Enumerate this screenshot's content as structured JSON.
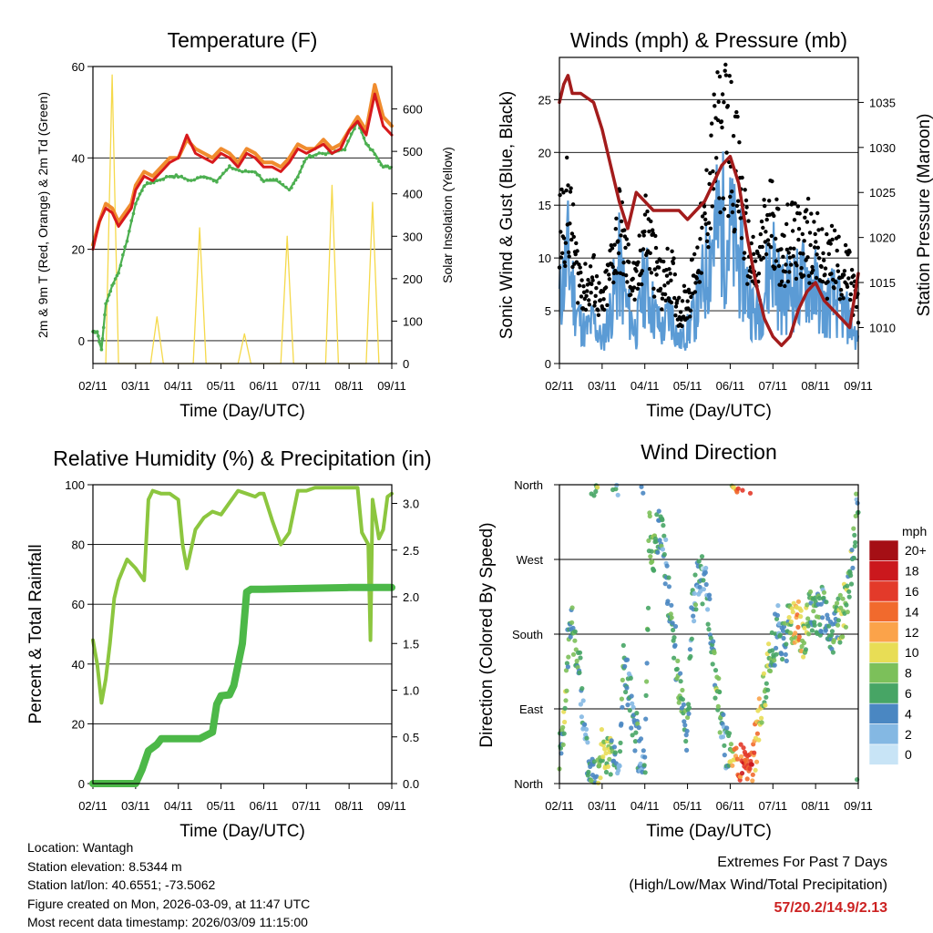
{
  "colors": {
    "red": "#d7191c",
    "orange": "#f08c2e",
    "green": "#4caf50",
    "yellow": "#f5d94a",
    "black": "#000000",
    "blue": "#5b9bd5",
    "maroon": "#a31c1c",
    "rh": "#8cc63f",
    "precip": "#4cb848"
  },
  "time_ticks": [
    "02/11",
    "03/11",
    "04/11",
    "05/11",
    "06/11",
    "07/11",
    "08/11",
    "09/11"
  ],
  "charts": {
    "temperature": {
      "title": "Temperature (F)",
      "ylabel": "2m & 9m T (Red, Orange) & 2m Td (Green)",
      "ylabel_right": "Solar Insolation (Yellow)",
      "xlabel": "Time (Day/UTC)",
      "left_ticks": [
        "0",
        "20",
        "40",
        "60"
      ],
      "right_ticks": [
        "0",
        "100",
        "200",
        "300",
        "400",
        "500",
        "600"
      ]
    },
    "winds": {
      "title": "Winds (mph) & Pressure (mb)",
      "ylabel": "Sonic Wind & Gust (Blue, Black)",
      "ylabel_right": "Station Pressure (Maroon)",
      "xlabel": "Time (Day/UTC)",
      "left_ticks": [
        "0",
        "5",
        "10",
        "15",
        "20",
        "25"
      ],
      "right_ticks": [
        "1010",
        "1015",
        "1020",
        "1025",
        "1030",
        "1035"
      ]
    },
    "humidity": {
      "title": "Relative Humidity (%) & Precipitation (in)",
      "ylabel": "Percent & Total Rainfall",
      "xlabel": "Time (Day/UTC)",
      "left_ticks": [
        "0",
        "20",
        "40",
        "60",
        "80",
        "100"
      ],
      "right_ticks": [
        "0.0",
        "0.5",
        "1.0",
        "1.5",
        "2.0",
        "2.5",
        "3.0"
      ]
    },
    "direction": {
      "title": "Wind Direction",
      "ylabel": "Direction (Colored By Speed)",
      "xlabel": "Time (Day/UTC)",
      "dir_ticks": [
        "North",
        "East",
        "South",
        "West",
        "North"
      ],
      "legend_title": "mph",
      "legend_labels": [
        "20+",
        "18",
        "16",
        "14",
        "12",
        "10",
        "8",
        "6",
        "4",
        "2",
        "0"
      ],
      "legend_colors": [
        "#a50f15",
        "#cb181d",
        "#e33a2a",
        "#f16a2d",
        "#fba34a",
        "#e8dd55",
        "#7cc05a",
        "#47a565",
        "#4a87c2",
        "#84b8e3",
        "#c8e4f6"
      ]
    }
  },
  "chart_data": [
    {
      "type": "line",
      "title": "Temperature (F)",
      "xlabel": "Time (Day/UTC)",
      "ylabel": "2m & 9m T (Red, Orange) & 2m Td (Green)",
      "ylim": [
        -5,
        60
      ],
      "y2lim": [
        0,
        700
      ],
      "x_unit": "days since 02/11",
      "series": [
        {
          "name": "2m T",
          "axis": "left",
          "x": [
            0,
            0.15,
            0.3,
            0.45,
            0.6,
            0.75,
            0.9,
            1.0,
            1.2,
            1.4,
            1.6,
            1.8,
            2.0,
            2.2,
            2.4,
            2.6,
            2.8,
            3.0,
            3.2,
            3.4,
            3.6,
            3.8,
            4.0,
            4.2,
            4.4,
            4.6,
            4.8,
            5.0,
            5.2,
            5.4,
            5.6,
            5.8,
            6.0,
            6.2,
            6.4,
            6.6,
            6.8,
            7.0
          ],
          "values": [
            20,
            26,
            29,
            28,
            25,
            27,
            29,
            33,
            36,
            35,
            37,
            39,
            40,
            45,
            41,
            40,
            39,
            41,
            40,
            38,
            41,
            40,
            38,
            38,
            37,
            39,
            42,
            41,
            42,
            43,
            41,
            42,
            46,
            48,
            45,
            54,
            47,
            45
          ]
        },
        {
          "name": "9m T",
          "axis": "left",
          "x": [
            0,
            0.15,
            0.3,
            0.45,
            0.6,
            0.75,
            0.9,
            1.0,
            1.2,
            1.4,
            1.6,
            1.8,
            2.0,
            2.2,
            2.4,
            2.6,
            2.8,
            3.0,
            3.2,
            3.4,
            3.6,
            3.8,
            4.0,
            4.2,
            4.4,
            4.6,
            4.8,
            5.0,
            5.2,
            5.4,
            5.6,
            5.8,
            6.0,
            6.2,
            6.4,
            6.6,
            6.8,
            7.0
          ],
          "values": [
            21,
            26,
            30,
            29,
            26,
            28,
            30,
            34,
            37,
            36,
            38,
            40,
            40,
            44,
            42,
            41,
            40,
            42,
            41,
            39,
            42,
            41,
            39,
            39,
            38,
            40,
            43,
            42,
            42,
            44,
            42,
            43,
            46,
            49,
            46,
            56,
            49,
            47
          ]
        },
        {
          "name": "2m Td",
          "axis": "left",
          "x": [
            0,
            0.1,
            0.2,
            0.3,
            0.45,
            0.6,
            0.8,
            1.0,
            1.2,
            1.5,
            1.8,
            2.0,
            2.3,
            2.6,
            2.9,
            3.2,
            3.5,
            3.8,
            4.0,
            4.3,
            4.6,
            4.8,
            5.0,
            5.3,
            5.6,
            5.9,
            6.2,
            6.4,
            6.6,
            6.8,
            7.0
          ],
          "values": [
            2,
            2,
            -2,
            8,
            12,
            15,
            22,
            30,
            34,
            35,
            36,
            36,
            35,
            36,
            35,
            38,
            37,
            37,
            35,
            35,
            33,
            36,
            40,
            41,
            41,
            42,
            48,
            43,
            41,
            38,
            38
          ]
        },
        {
          "name": "Solar Insolation",
          "axis": "right",
          "x": [
            0.3,
            0.45,
            0.6,
            1.35,
            1.5,
            1.65,
            2.35,
            2.5,
            2.65,
            3.4,
            3.55,
            3.7,
            4.4,
            4.55,
            4.7,
            5.45,
            5.6,
            5.75,
            6.4,
            6.55,
            6.7
          ],
          "values": [
            0,
            680,
            0,
            0,
            110,
            0,
            0,
            320,
            0,
            0,
            70,
            0,
            0,
            300,
            0,
            0,
            420,
            0,
            0,
            380,
            0
          ]
        }
      ]
    },
    {
      "type": "line",
      "title": "Winds (mph) & Pressure (mb)",
      "xlabel": "Time (Day/UTC)",
      "ylabel": "Sonic Wind & Gust (Blue, Black)",
      "ylim": [
        0,
        29
      ],
      "y2lim": [
        1006,
        1040
      ],
      "x_unit": "days since 02/11",
      "series": [
        {
          "name": "Gust",
          "axis": "left",
          "x": [
            0,
            0.2,
            0.4,
            0.6,
            0.8,
            1.0,
            1.2,
            1.4,
            1.6,
            1.8,
            2.0,
            2.2,
            2.4,
            2.6,
            2.8,
            3.0,
            3.2,
            3.4,
            3.6,
            3.8,
            4.0,
            4.2,
            4.4,
            4.6,
            4.8,
            5.0,
            5.2,
            5.4,
            5.6,
            5.8,
            6.0,
            6.2,
            6.4,
            6.6,
            6.8,
            7.0
          ],
          "values": [
            12,
            15,
            9,
            7,
            8,
            5,
            9,
            13,
            9,
            7,
            13,
            10,
            7,
            9,
            5,
            6,
            9,
            13,
            19,
            22,
            21,
            17,
            11,
            8,
            12,
            14,
            10,
            12,
            11,
            12,
            11,
            9,
            10,
            9,
            8,
            5
          ]
        },
        {
          "name": "Sonic Wind",
          "axis": "left",
          "x": [
            0,
            0.2,
            0.4,
            0.6,
            0.8,
            1.0,
            1.2,
            1.4,
            1.6,
            1.8,
            2.0,
            2.2,
            2.4,
            2.6,
            2.8,
            3.0,
            3.2,
            3.4,
            3.6,
            3.8,
            4.0,
            4.2,
            4.4,
            4.6,
            4.8,
            5.0,
            5.2,
            5.4,
            5.6,
            5.8,
            6.0,
            6.2,
            6.4,
            6.6,
            6.8,
            7.0
          ],
          "values": [
            6,
            10,
            5,
            3,
            4,
            2,
            5,
            9,
            5,
            3,
            8,
            5,
            3,
            5,
            2,
            3,
            5,
            8,
            12,
            13,
            12,
            10,
            7,
            4,
            7,
            10,
            6,
            7,
            7,
            8,
            7,
            5,
            6,
            5,
            4,
            2
          ]
        },
        {
          "name": "Station Pressure",
          "axis": "right",
          "x": [
            0,
            0.1,
            0.2,
            0.3,
            0.5,
            0.8,
            1.0,
            1.2,
            1.4,
            1.6,
            1.8,
            2.0,
            2.2,
            2.4,
            2.6,
            2.8,
            3.0,
            3.2,
            3.4,
            3.6,
            3.8,
            4.0,
            4.2,
            4.4,
            4.6,
            4.8,
            5.0,
            5.2,
            5.4,
            5.6,
            5.8,
            6.0,
            6.2,
            6.4,
            6.6,
            6.8,
            7.0
          ],
          "values": [
            1035,
            1037,
            1038,
            1036,
            1036,
            1035,
            1032,
            1028,
            1024,
            1021,
            1025,
            1024,
            1023,
            1023,
            1023,
            1023,
            1022,
            1023,
            1024,
            1026,
            1028,
            1029,
            1026,
            1020,
            1015,
            1011,
            1009,
            1008,
            1009,
            1012,
            1014,
            1015,
            1013,
            1012,
            1011,
            1010,
            1016
          ]
        }
      ]
    },
    {
      "type": "line",
      "title": "Relative Humidity (%) & Precipitation (in)",
      "xlabel": "Time (Day/UTC)",
      "ylabel": "Percent & Total Rainfall",
      "ylim": [
        0,
        100
      ],
      "y2lim": [
        0,
        3.2
      ],
      "x_unit": "days since 02/11",
      "series": [
        {
          "name": "Relative Humidity",
          "axis": "left",
          "x": [
            0,
            0.1,
            0.2,
            0.3,
            0.4,
            0.5,
            0.6,
            0.8,
            1.0,
            1.2,
            1.3,
            1.4,
            1.6,
            1.8,
            2.0,
            2.1,
            2.2,
            2.4,
            2.6,
            2.8,
            3.0,
            3.2,
            3.4,
            3.6,
            3.8,
            3.9,
            4.0,
            4.2,
            4.4,
            4.6,
            4.8,
            5.0,
            5.2,
            5.4,
            5.6,
            5.8,
            6.0,
            6.2,
            6.3,
            6.45,
            6.5,
            6.55,
            6.7,
            6.8,
            6.9,
            7.0
          ],
          "values": [
            48,
            40,
            27,
            35,
            47,
            62,
            68,
            75,
            72,
            68,
            95,
            98,
            97,
            97,
            95,
            80,
            72,
            85,
            89,
            91,
            90,
            94,
            98,
            97,
            96,
            97,
            97,
            88,
            80,
            84,
            98,
            98,
            99,
            99,
            99,
            99,
            99,
            99,
            84,
            80,
            48,
            95,
            82,
            85,
            96,
            97
          ]
        },
        {
          "name": "Total Precipitation",
          "axis": "right",
          "x": [
            0,
            1.0,
            1.15,
            1.3,
            1.5,
            1.6,
            2.0,
            2.5,
            2.8,
            2.9,
            3.0,
            3.2,
            3.3,
            3.5,
            3.6,
            3.7,
            4.0,
            5.0,
            6.0,
            7.0
          ],
          "values": [
            0.0,
            0.0,
            0.15,
            0.35,
            0.42,
            0.48,
            0.48,
            0.48,
            0.55,
            0.85,
            0.94,
            0.95,
            1.05,
            1.5,
            2.05,
            2.08,
            2.08,
            2.09,
            2.1,
            2.1
          ]
        }
      ]
    },
    {
      "type": "scatter",
      "title": "Wind Direction",
      "xlabel": "Time (Day/UTC)",
      "ylabel": "Direction (Colored By Speed)",
      "y_categories": [
        "North",
        "East",
        "South",
        "West",
        "North"
      ],
      "color_scale_mph": [
        "20+",
        "18",
        "16",
        "14",
        "12",
        "10",
        "8",
        "6",
        "4",
        "2",
        "0"
      ],
      "x_unit": "days since 02/11",
      "series": [
        {
          "name": "Direction (deg)",
          "x": [
            0.05,
            0.1,
            0.15,
            0.2,
            0.3,
            0.4,
            0.5,
            0.6,
            0.7,
            0.8,
            1.0,
            1.2,
            1.3,
            1.4,
            1.5,
            1.6,
            1.7,
            1.8,
            1.9,
            2.0,
            2.1,
            2.2,
            2.3,
            2.4,
            2.5,
            2.6,
            2.7,
            2.8,
            2.9,
            3.0,
            3.1,
            3.2,
            3.3,
            3.4,
            3.5,
            3.6,
            3.7,
            3.8,
            3.9,
            4.0,
            4.1,
            4.2,
            4.3,
            4.5,
            4.6,
            4.7,
            4.8,
            5.0,
            5.1,
            5.2,
            5.3,
            5.4,
            5.5,
            5.6,
            5.7,
            5.8,
            5.9,
            6.0,
            6.2,
            6.4,
            6.6,
            6.8,
            6.9,
            7.0
          ],
          "values": [
            40,
            60,
            110,
            170,
            190,
            160,
            120,
            50,
            20,
            10,
            40,
            30,
            15,
            5,
            150,
            120,
            90,
            60,
            30,
            5,
            300,
            280,
            300,
            310,
            260,
            200,
            170,
            120,
            90,
            60,
            200,
            230,
            250,
            240,
            210,
            150,
            110,
            70,
            40,
            30,
            20,
            15,
            20,
            10,
            50,
            80,
            120,
            160,
            190,
            180,
            170,
            200,
            190,
            200,
            175,
            190,
            210,
            200,
            210,
            180,
            200,
            230,
            300,
            350
          ],
          "speeds": [
            6,
            7,
            8,
            5,
            6,
            7,
            4,
            3,
            5,
            6,
            9,
            8,
            4,
            3,
            7,
            5,
            4,
            6,
            3,
            4,
            8,
            7,
            6,
            5,
            4,
            6,
            5,
            7,
            5,
            6,
            4,
            5,
            4,
            3,
            5,
            6,
            7,
            5,
            4,
            8,
            12,
            14,
            16,
            15,
            12,
            10,
            8,
            6,
            4,
            5,
            6,
            8,
            10,
            12,
            9,
            8,
            7,
            6,
            5,
            6,
            8,
            7,
            6,
            5
          ]
        }
      ]
    }
  ],
  "info": {
    "location": "Location: Wantagh",
    "elevation": "Station elevation: 8.5344 m",
    "latlon": "Station lat/lon: 40.6551; -73.5062",
    "created": "Figure created on Mon, 2026-03-09, at 11:47 UTC",
    "recent": "Most recent data timestamp: 2026/03/09 11:15:00"
  },
  "extremes": {
    "title": "Extremes For Past 7 Days",
    "subtitle": "(High/Low/Max Wind/Total Precipitation)",
    "values": "57/20.2/14.9/2.13",
    "value_color": "#cc2222"
  }
}
